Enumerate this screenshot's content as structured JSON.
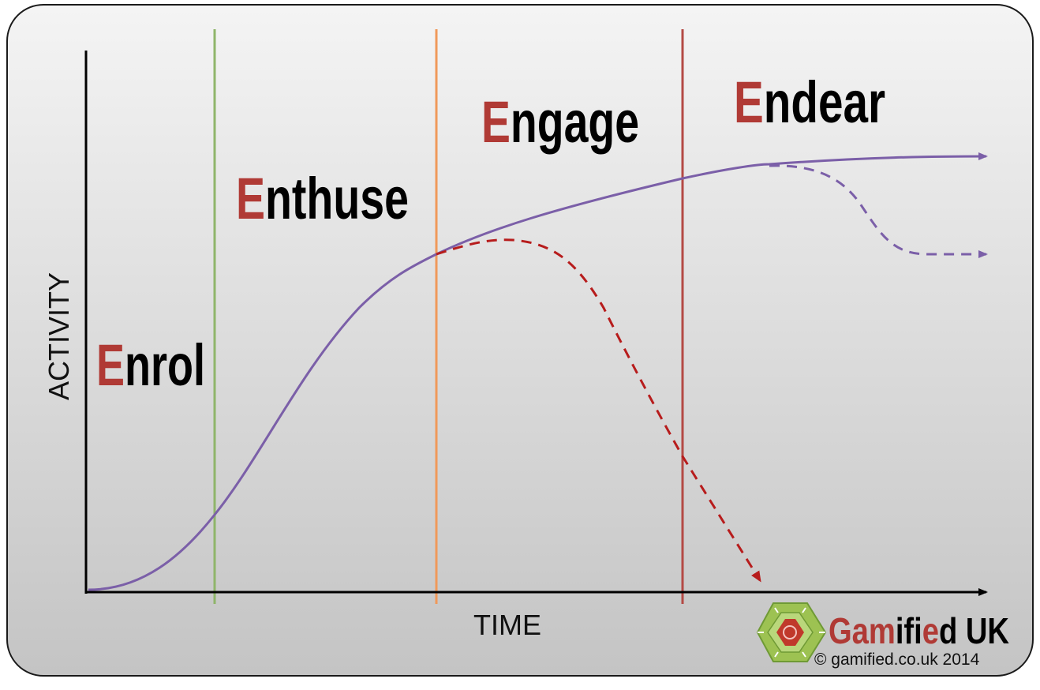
{
  "diagram": {
    "phases": [
      {
        "initial": "E",
        "rest": "nrol"
      },
      {
        "initial": "E",
        "rest": "nthuse"
      },
      {
        "initial": "E",
        "rest": "ngage"
      },
      {
        "initial": "E",
        "rest": "ndear"
      }
    ],
    "axes": {
      "x_label": "TIME",
      "y_label": "ACTIVITY"
    },
    "colors": {
      "main_curve": "#7b5fa8",
      "decline_curve": "#b71c1c",
      "divider_1": "#8fb56a",
      "divider_2": "#f0995a",
      "divider_3": "#b44a45",
      "phase_initial": "#b03a35",
      "background_top": "#f4f4f4",
      "background_bottom": "#c4c4c4"
    }
  },
  "brand": {
    "name_parts": [
      "Gam",
      "ifi",
      "e",
      "d UK"
    ],
    "copyright": "© gamified.co.uk 2014",
    "logo_icon": "hexagon-logo-icon",
    "colors": {
      "hexagon": "#9dc252",
      "hexagon_inner": "#6f9a35",
      "center": "#c0392b"
    }
  }
}
